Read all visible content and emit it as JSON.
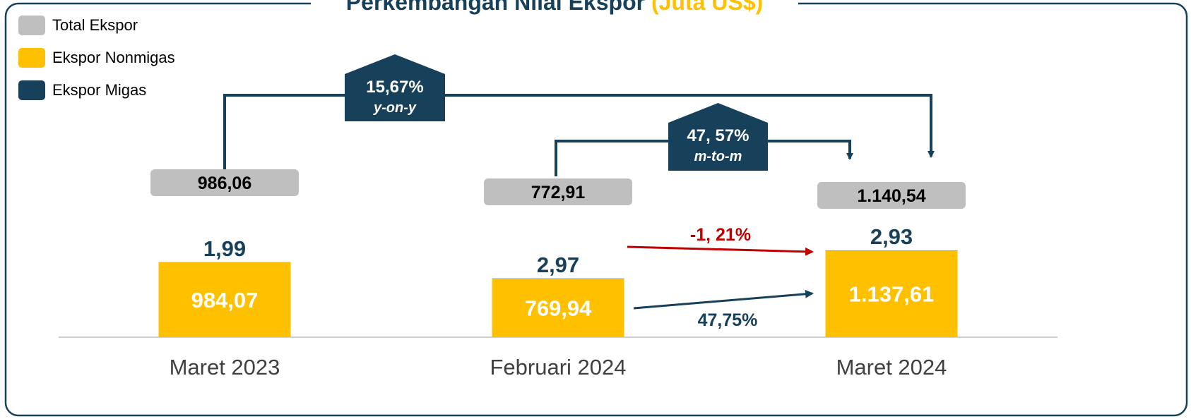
{
  "chart_data": {
    "type": "bar",
    "title": "Perkembangan Nilai Ekspor",
    "title_unit": "(Juta US$)",
    "categories": [
      "Maret 2023",
      "Februari 2024",
      "Maret 2024"
    ],
    "series": [
      {
        "name": "Ekspor Nonmigas",
        "color": "#ffc000",
        "values": [
          984.07,
          769.94,
          1137.61
        ],
        "value_labels": [
          "984,07",
          "769,94",
          "1.137,61"
        ]
      },
      {
        "name": "Ekspor Migas",
        "color": "#17405a",
        "values": [
          1.99,
          2.97,
          2.93
        ],
        "value_labels": [
          "1,99",
          "2,97",
          "2,93"
        ]
      }
    ],
    "totals": {
      "name": "Total Ekspor",
      "color": "#bfbfbf",
      "values": [
        986.06,
        772.91,
        1140.54
      ],
      "value_labels": [
        "986,06",
        "772,91",
        "1.140,54"
      ]
    },
    "annotations": [
      {
        "value": 15.67,
        "label": "15,67%",
        "period": "y-on-y"
      },
      {
        "value": 47.57,
        "label": "47, 57%",
        "period": "m-to-m"
      },
      {
        "value": -1.21,
        "label": "-1, 21%"
      },
      {
        "value": 47.75,
        "label": "47,75%"
      }
    ]
  }
}
